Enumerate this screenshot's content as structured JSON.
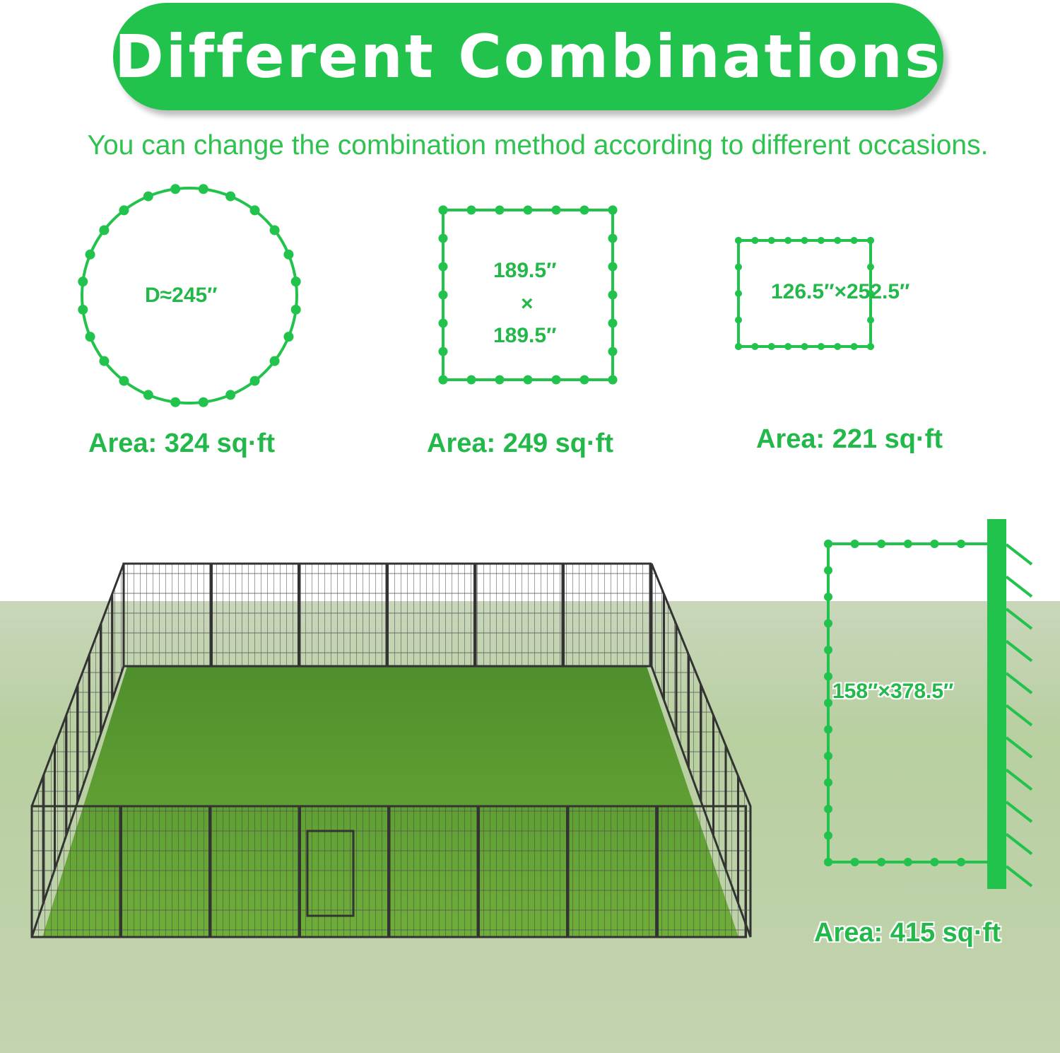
{
  "title": "Different Combinations",
  "subtitle": "You can change the combination method according to different occasions.",
  "colors": {
    "accent": "#22c34c",
    "text_green": "#22b84a",
    "fence": "#3a3a3a",
    "grass": "#6fa83a"
  },
  "combinations": [
    {
      "shape": "circle",
      "dimension": "D≈245″",
      "area": "Area: 324 sq·ft"
    },
    {
      "shape": "square",
      "dimension_top": "189.5″",
      "dimension_times": "×",
      "dimension_bottom": "189.5″",
      "area": "Area: 249 sq·ft"
    },
    {
      "shape": "rectangle",
      "dimension": "126.5″×252.5″",
      "area": "Area: 221 sq·ft"
    },
    {
      "shape": "against-wall",
      "dimension": "158″×378.5″",
      "area": "Area: 415 sq·ft"
    }
  ]
}
